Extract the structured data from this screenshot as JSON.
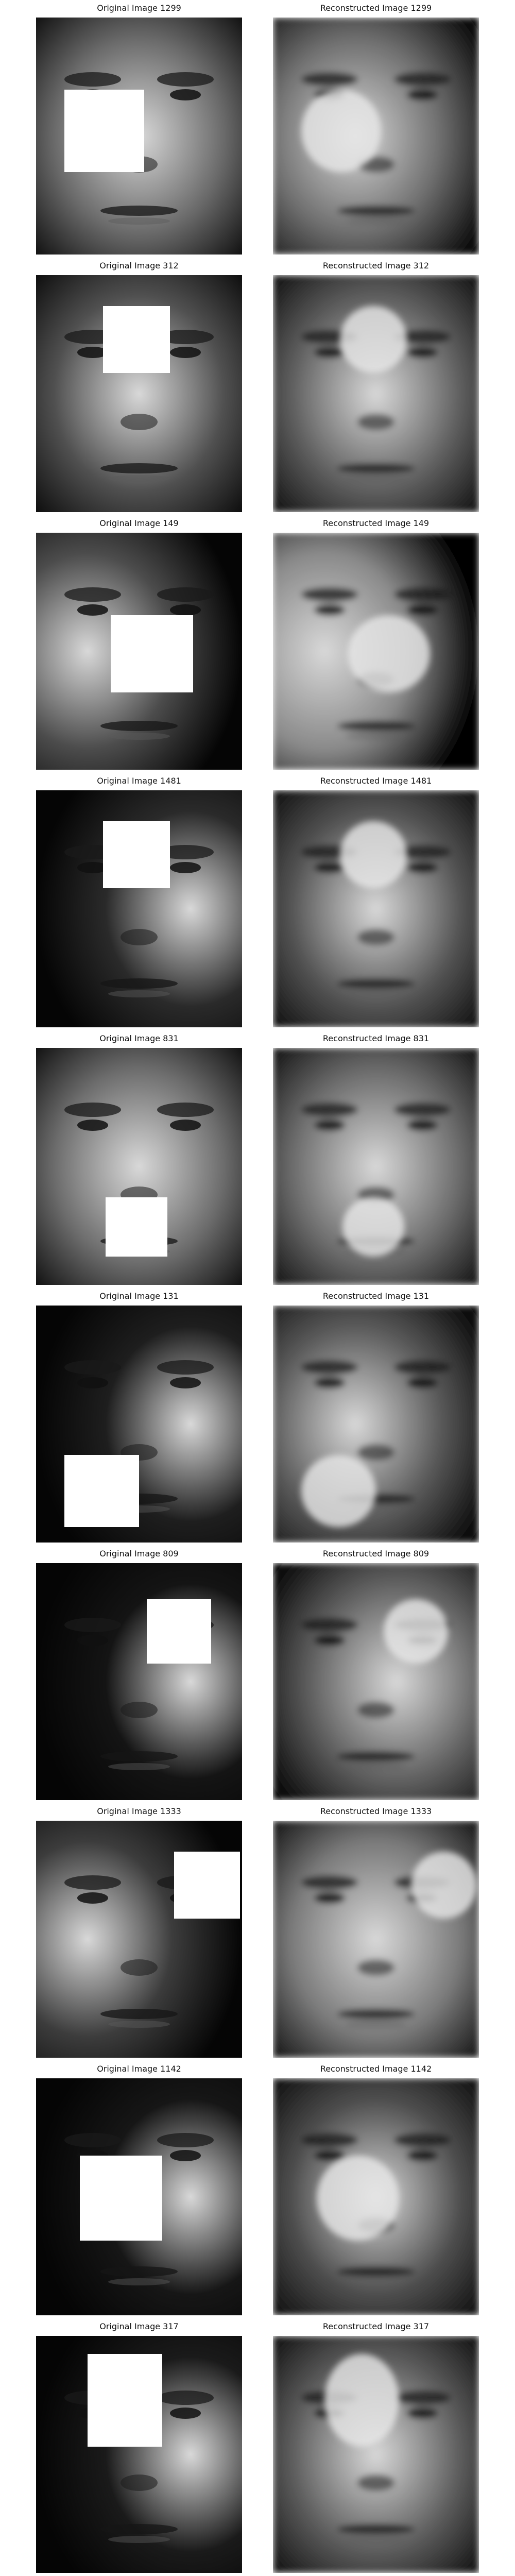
{
  "rows": [
    {
      "original": {
        "title": "Original Image 1299",
        "tone": "#6a6a6a",
        "light": "center",
        "mask": "left"
      },
      "reconstructed": {
        "title": "Reconstructed Image 1299",
        "tone": "#6e6e6e",
        "light": "center-left"
      }
    },
    {
      "original": {
        "title": "Original Image 312",
        "tone": "#505050",
        "light": "center",
        "mask": "upper-center"
      },
      "reconstructed": {
        "title": "Reconstructed Image 312",
        "tone": "#5e5e5e",
        "light": "center"
      }
    },
    {
      "original": {
        "title": "Original Image 149",
        "tone": "#4c4c4c",
        "light": "left",
        "mask": "center-right"
      },
      "reconstructed": {
        "title": "Reconstructed Image 149",
        "tone": "#8a8a8a",
        "light": "left"
      }
    },
    {
      "original": {
        "title": "Original Image 1481",
        "tone": "#2a2a2a",
        "light": "right",
        "mask": "upper-center"
      },
      "reconstructed": {
        "title": "Reconstructed Image 1481",
        "tone": "#545454",
        "light": "center"
      }
    },
    {
      "original": {
        "title": "Original Image 831",
        "tone": "#6c6c6c",
        "light": "center",
        "mask": "lower-center"
      },
      "reconstructed": {
        "title": "Reconstructed Image 831",
        "tone": "#6a6a6a",
        "light": "center"
      }
    },
    {
      "original": {
        "title": "Original Image 131",
        "tone": "#1e1e1e",
        "light": "right",
        "mask": "lower-left"
      },
      "reconstructed": {
        "title": "Reconstructed Image 131",
        "tone": "#5a5a5a",
        "light": "center-left"
      }
    },
    {
      "original": {
        "title": "Original Image 809",
        "tone": "#141414",
        "light": "right",
        "mask": "upper-right"
      },
      "reconstructed": {
        "title": "Reconstructed Image 809",
        "tone": "#626262",
        "light": "center-right"
      }
    },
    {
      "original": {
        "title": "Original Image 1333",
        "tone": "#3c3c3c",
        "light": "left",
        "mask": "right"
      },
      "reconstructed": {
        "title": "Reconstructed Image 1333",
        "tone": "#7a7a7a",
        "light": "center"
      }
    },
    {
      "original": {
        "title": "Original Image 1142",
        "tone": "#161616",
        "light": "right",
        "mask": "center-left"
      },
      "reconstructed": {
        "title": "Reconstructed Image 1142",
        "tone": "#4e4e4e",
        "light": "center"
      }
    },
    {
      "original": {
        "title": "Original Image 317",
        "tone": "#1a1a1a",
        "light": "right",
        "mask": "upper-left"
      },
      "reconstructed": {
        "title": "Reconstructed Image 317",
        "tone": "#5c5c5c",
        "light": "center"
      }
    }
  ]
}
